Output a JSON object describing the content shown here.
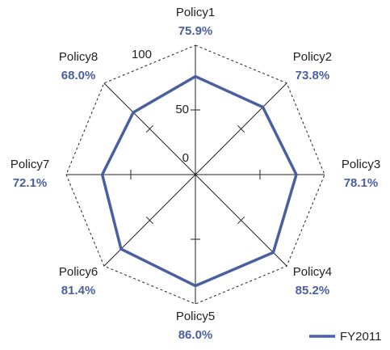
{
  "chart_data": {
    "type": "radar",
    "categories": [
      "Policy1",
      "Policy2",
      "Policy3",
      "Policy4",
      "Policy5",
      "Policy6",
      "Policy7",
      "Policy8"
    ],
    "series": [
      {
        "name": "FY2011",
        "color": "#4a5fa0",
        "values": [
          75.9,
          73.8,
          78.1,
          85.2,
          86.0,
          81.4,
          72.1,
          68.0
        ],
        "value_labels": [
          "75.9%",
          "73.8%",
          "78.1%",
          "85.2%",
          "86.0%",
          "81.4%",
          "72.1%",
          "68.0%"
        ]
      }
    ],
    "rlim": [
      0,
      100
    ],
    "rticks": [
      0,
      50,
      100
    ],
    "legend": "bottom-right"
  }
}
